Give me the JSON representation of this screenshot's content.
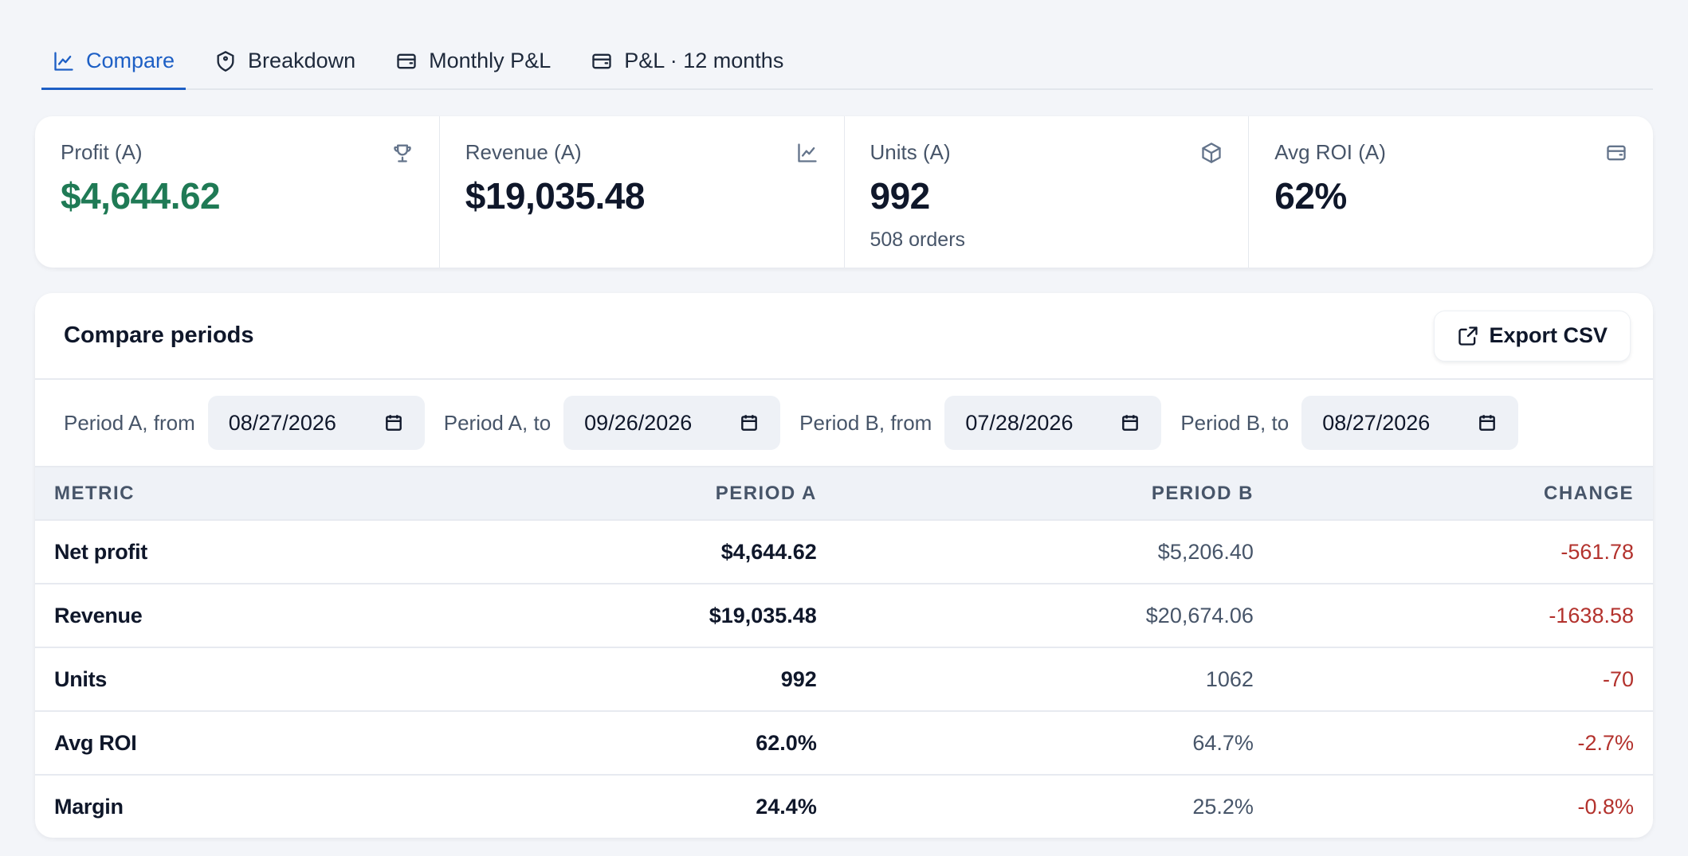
{
  "tabs": [
    {
      "label": "Compare",
      "icon": "line-chart-icon",
      "active": true
    },
    {
      "label": "Breakdown",
      "icon": "tag-icon",
      "active": false
    },
    {
      "label": "Monthly P&L",
      "icon": "wallet-icon",
      "active": false
    },
    {
      "label": "P&L · 12 months",
      "icon": "wallet-icon",
      "active": false
    }
  ],
  "kpis": [
    {
      "label": "Profit (A)",
      "value": "$4,644.62",
      "icon": "trophy-icon",
      "value_color": "#1f7a55"
    },
    {
      "label": "Revenue (A)",
      "value": "$19,035.48",
      "icon": "line-chart-icon"
    },
    {
      "label": "Units (A)",
      "value": "992",
      "sub": "508 orders",
      "icon": "box-icon"
    },
    {
      "label": "Avg ROI (A)",
      "value": "62%",
      "icon": "wallet-icon"
    }
  ],
  "compare": {
    "title": "Compare periods",
    "export_label": "Export CSV",
    "filters": [
      {
        "label": "Period A, from",
        "value": "08/27/2026"
      },
      {
        "label": "Period A, to",
        "value": "09/26/2026"
      },
      {
        "label": "Period B, from",
        "value": "07/28/2026"
      },
      {
        "label": "Period B, to",
        "value": "08/27/2026"
      }
    ],
    "columns": [
      "METRIC",
      "PERIOD A",
      "PERIOD B",
      "CHANGE"
    ],
    "rows": [
      [
        "Net profit",
        "$4,644.62",
        "$5,206.40",
        "-561.78"
      ],
      [
        "Revenue",
        "$19,035.48",
        "$20,674.06",
        "-1638.58"
      ],
      [
        "Units",
        "992",
        "1062",
        "-70"
      ],
      [
        "Avg ROI",
        "62.0%",
        "64.7%",
        "-2.7%"
      ],
      [
        "Margin",
        "24.4%",
        "25.2%",
        "-0.8%"
      ]
    ]
  },
  "colors": {
    "accent": "#1d5fc5",
    "positive_value": "#1f7a55",
    "negative_change": "#b3322d"
  }
}
